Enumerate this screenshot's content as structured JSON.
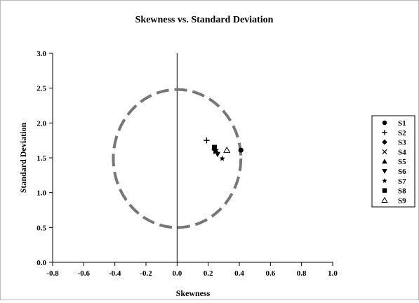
{
  "chart_data": {
    "type": "scatter",
    "title": "Skewness vs. Standard Deviation",
    "xlabel": "Skewness",
    "ylabel": "Standard Deviation",
    "xlim": [
      -0.8,
      1.0
    ],
    "ylim": [
      0.0,
      3.0
    ],
    "xticks": [
      -0.8,
      -0.6,
      -0.4,
      -0.2,
      0.0,
      0.2,
      0.4,
      0.6,
      0.8,
      1.0
    ],
    "yticks": [
      0.0,
      0.5,
      1.0,
      1.5,
      2.0,
      2.5,
      3.0
    ],
    "xtick_labels": [
      "-0.8",
      "-0.6",
      "-0.4",
      "-0.2",
      "0.0",
      "0.2",
      "0.4",
      "0.6",
      "0.8",
      "1.0"
    ],
    "ytick_labels": [
      "0.0",
      "0.5",
      "1.0",
      "1.5",
      "2.0",
      "2.5",
      "3.0"
    ],
    "grid": false,
    "legend_position": "right",
    "reference_line": {
      "x": 0.0
    },
    "reference_circle": {
      "center_x": 0.0,
      "center_y": 1.49,
      "radius_x": 0.41,
      "radius_y": 0.99,
      "style": "dashed",
      "color": "#777777"
    },
    "series": [
      {
        "name": "S1",
        "marker": "circle",
        "color": "#000000",
        "points": [
          [
            0.41,
            1.61
          ]
        ]
      },
      {
        "name": "S2",
        "marker": "plus",
        "color": "#000000",
        "points": [
          [
            0.19,
            1.75
          ]
        ]
      },
      {
        "name": "S3",
        "marker": "diamond",
        "color": "#000000",
        "points": [
          [
            0.24,
            1.62
          ]
        ]
      },
      {
        "name": "S4",
        "marker": "x",
        "color": "#000000",
        "points": [
          [
            0.25,
            1.59
          ]
        ]
      },
      {
        "name": "S5",
        "marker": "triangle-up",
        "color": "#000000",
        "points": [
          [
            0.25,
            1.6
          ]
        ]
      },
      {
        "name": "S6",
        "marker": "triangle-down",
        "color": "#000000",
        "points": [
          [
            0.26,
            1.55
          ]
        ]
      },
      {
        "name": "S7",
        "marker": "star",
        "color": "#000000",
        "points": [
          [
            0.29,
            1.49
          ]
        ]
      },
      {
        "name": "S8",
        "marker": "square",
        "color": "#000000",
        "points": [
          [
            0.24,
            1.65
          ]
        ]
      },
      {
        "name": "S9",
        "marker": "triangle-open",
        "color": "#000000",
        "points": [
          [
            0.32,
            1.61
          ]
        ]
      }
    ]
  }
}
